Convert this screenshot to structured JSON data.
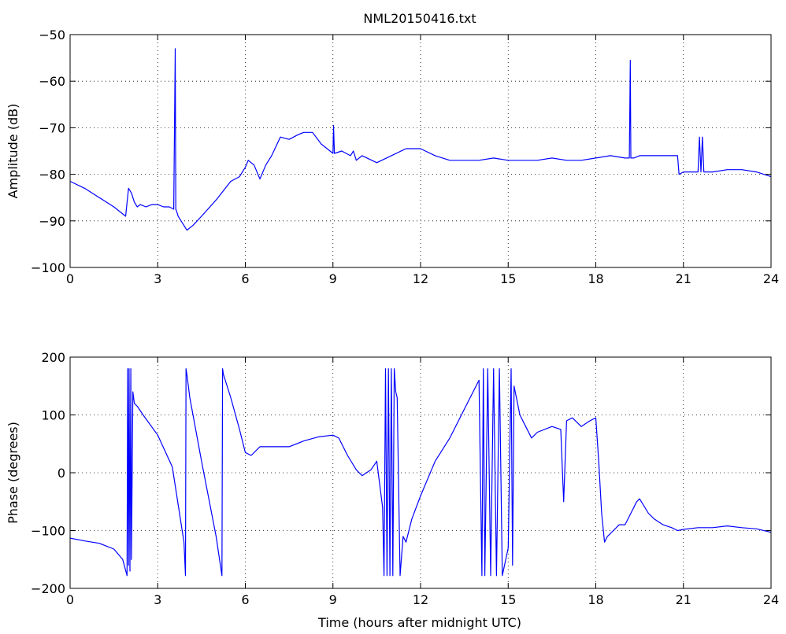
{
  "chart_data": [
    {
      "type": "line",
      "title": "NML20150416.txt",
      "xlabel": "",
      "ylabel": "Amplitude (dB)",
      "xlim": [
        0,
        24
      ],
      "ylim": [
        -100,
        -50
      ],
      "xticks": [
        0,
        3,
        6,
        9,
        12,
        15,
        18,
        21,
        24
      ],
      "yticks": [
        -50,
        -60,
        -70,
        -80,
        -90,
        -100
      ],
      "xtick_labels": [
        "0",
        "3",
        "6",
        "9",
        "12",
        "15",
        "18",
        "21",
        "24"
      ],
      "ytick_labels": [
        "−50",
        "−60",
        "−70",
        "−80",
        "−90",
        "−100"
      ],
      "grid": true,
      "line_color": "#0000ff",
      "series": [
        {
          "name": "",
          "x": [
            0,
            0.5,
            1,
            1.5,
            1.9,
            2.0,
            2.05,
            2.1,
            2.2,
            2.3,
            2.4,
            2.6,
            2.8,
            3.0,
            3.2,
            3.4,
            3.55,
            3.6,
            3.62,
            3.65,
            3.7,
            3.8,
            3.9,
            4.0,
            4.2,
            4.5,
            5.0,
            5.5,
            5.8,
            6.0,
            6.1,
            6.3,
            6.5,
            6.7,
            6.9,
            7.2,
            7.5,
            7.8,
            8.0,
            8.3,
            8.6,
            8.8,
            9.0,
            9.02,
            9.05,
            9.3,
            9.6,
            9.7,
            9.8,
            10.0,
            10.5,
            11.0,
            11.5,
            12.0,
            12.5,
            13.0,
            13.5,
            14.0,
            14.5,
            15.0,
            15.5,
            16.0,
            16.5,
            17.0,
            17.5,
            18.0,
            18.5,
            19.0,
            19.15,
            19.18,
            19.2,
            19.3,
            19.5,
            20.0,
            20.5,
            20.8,
            20.85,
            21.0,
            21.5,
            21.55,
            21.6,
            21.65,
            21.7,
            22.0,
            22.5,
            23.0,
            23.5,
            24.0
          ],
          "y": [
            -81.5,
            -83,
            -85,
            -87,
            -89,
            -83,
            -83.5,
            -84,
            -86,
            -87,
            -86.5,
            -87,
            -86.5,
            -86.5,
            -87,
            -87,
            -87.5,
            -53,
            -87.5,
            -88,
            -89,
            -90,
            -91,
            -92,
            -91,
            -89,
            -85.5,
            -81.5,
            -80.5,
            -78.5,
            -77,
            -78,
            -81,
            -78,
            -76,
            -72,
            -72.5,
            -71.5,
            -71,
            -71,
            -73.5,
            -74.5,
            -75.5,
            -69.5,
            -75.5,
            -75,
            -76,
            -75,
            -77,
            -76,
            -77.5,
            -76,
            -74.5,
            -74.5,
            -76,
            -77,
            -77,
            -77,
            -76.5,
            -77,
            -77,
            -77,
            -76.5,
            -77,
            -77,
            -76.5,
            -76,
            -76.5,
            -76.5,
            -55.5,
            -76.5,
            -76.5,
            -76,
            -76,
            -76,
            -76,
            -80,
            -79.5,
            -79.5,
            -72,
            -79.5,
            -72,
            -79.5,
            -79.5,
            -79,
            -79,
            -79.5,
            -80.5
          ]
        }
      ]
    },
    {
      "type": "line",
      "title": "",
      "xlabel": "Time (hours after midnight UTC)",
      "ylabel": "Phase (degrees)",
      "xlim": [
        0,
        24
      ],
      "ylim": [
        -200,
        200
      ],
      "xticks": [
        0,
        3,
        6,
        9,
        12,
        15,
        18,
        21,
        24
      ],
      "yticks": [
        200,
        100,
        0,
        -100,
        -200
      ],
      "xtick_labels": [
        "0",
        "3",
        "6",
        "9",
        "12",
        "15",
        "18",
        "21",
        "24"
      ],
      "ytick_labels": [
        "200",
        "100",
        "0",
        "−100",
        "−200"
      ],
      "grid": true,
      "line_color": "#0000ff",
      "series": [
        {
          "name": "",
          "x": [
            0,
            0.5,
            1,
            1.5,
            1.8,
            1.95,
            1.97,
            2.0,
            2.02,
            2.05,
            2.08,
            2.1,
            2.15,
            2.2,
            2.3,
            2.5,
            3.0,
            3.5,
            3.9,
            3.95,
            3.97,
            4.0,
            4.1,
            4.5,
            5.0,
            5.2,
            5.22,
            5.25,
            5.5,
            5.8,
            6.0,
            6.2,
            6.5,
            7.0,
            7.5,
            8.0,
            8.5,
            9.0,
            9.2,
            9.5,
            9.8,
            10.0,
            10.3,
            10.5,
            10.7,
            10.75,
            10.8,
            10.85,
            10.9,
            10.95,
            11.0,
            11.05,
            11.1,
            11.15,
            11.2,
            11.3,
            11.4,
            11.5,
            11.6,
            11.7,
            12.0,
            12.5,
            13.0,
            13.5,
            14.0,
            14.1,
            14.15,
            14.2,
            14.3,
            14.4,
            14.5,
            14.6,
            14.7,
            14.8,
            15.0,
            15.1,
            15.15,
            15.2,
            15.4,
            15.6,
            15.8,
            16.0,
            16.5,
            16.8,
            16.9,
            17.0,
            17.2,
            17.5,
            17.8,
            18.0,
            18.1,
            18.2,
            18.3,
            18.4,
            18.6,
            18.8,
            19.0,
            19.2,
            19.4,
            19.5,
            19.8,
            20.0,
            20.3,
            20.6,
            20.8,
            21.0,
            21.5,
            22.0,
            22.5,
            23.0,
            23.5,
            24.0
          ],
          "y": [
            -113,
            -118,
            -122,
            -132,
            -150,
            -178,
            180,
            -160,
            180,
            -170,
            180,
            -150,
            140,
            120,
            115,
            100,
            65,
            10,
            -120,
            -178,
            180,
            170,
            130,
            20,
            -110,
            -178,
            180,
            170,
            130,
            75,
            35,
            30,
            45,
            45,
            45,
            55,
            62,
            65,
            60,
            30,
            5,
            -5,
            5,
            20,
            -60,
            -178,
            180,
            -178,
            180,
            -178,
            180,
            -178,
            180,
            140,
            130,
            -178,
            -110,
            -120,
            -100,
            -80,
            -40,
            20,
            60,
            110,
            160,
            -178,
            180,
            -178,
            180,
            -178,
            180,
            -178,
            180,
            -178,
            -130,
            180,
            -160,
            150,
            100,
            80,
            60,
            70,
            80,
            75,
            -50,
            90,
            95,
            80,
            90,
            95,
            20,
            -70,
            -120,
            -110,
            -100,
            -90,
            -90,
            -70,
            -50,
            -45,
            -70,
            -80,
            -90,
            -95,
            -100,
            -98,
            -95,
            -95,
            -92,
            -95,
            -97,
            -103
          ]
        }
      ]
    }
  ]
}
